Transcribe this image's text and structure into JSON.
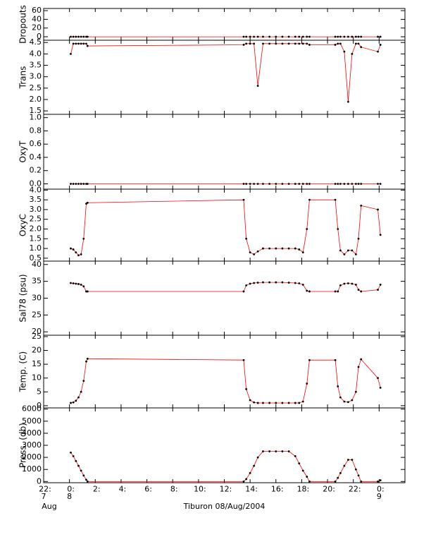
{
  "chart_data": [
    {
      "type": "line",
      "ylabel": "Dropouts",
      "xlim": [
        -2,
        26
      ],
      "ylim": [
        -8,
        65
      ],
      "yticks": [
        60,
        40,
        20,
        0
      ],
      "series": [
        {
          "color": "#ff0000",
          "marker_color": "#000000",
          "x": [
            0.1,
            0.3,
            0.5,
            0.7,
            0.9,
            1.1,
            1.3,
            1.4,
            13.5,
            13.7,
            14.0,
            14.3,
            14.6,
            15.0,
            15.5,
            16.0,
            16.5,
            17.0,
            17.5,
            17.8,
            18.1,
            18.4,
            18.6,
            20.6,
            20.8,
            21.0,
            21.3,
            21.6,
            21.9,
            22.2,
            22.4,
            22.6,
            23.9,
            24.1
          ],
          "values": [
            0,
            0,
            0,
            0,
            0,
            0,
            0,
            0,
            0,
            0,
            0,
            0,
            0,
            0,
            0,
            0,
            0,
            0,
            0,
            0,
            0,
            0,
            0,
            0,
            0,
            0,
            0,
            0,
            0,
            0,
            0,
            0,
            0,
            0
          ]
        }
      ]
    },
    {
      "type": "line",
      "ylabel": "Trans",
      "xlim": [
        -2,
        26
      ],
      "ylim": [
        1.35,
        4.6
      ],
      "yticks": [
        4.5,
        {
          "value": 4,
          "label": "4.0"
        },
        3.5,
        {
          "value": 3,
          "label": "3.0"
        },
        2.5,
        {
          "value": 2,
          "label": "2.0"
        },
        1.5
      ],
      "series": [
        {
          "color": "#ff0000",
          "marker_color": "#000000",
          "x": [
            0.1,
            0.3,
            0.5,
            0.7,
            0.9,
            1.1,
            1.3,
            1.4,
            13.5,
            13.7,
            14.0,
            14.3,
            14.6,
            15.0,
            15.5,
            16.0,
            16.5,
            17.0,
            17.5,
            17.8,
            18.1,
            18.4,
            18.6,
            20.6,
            20.8,
            21.0,
            21.3,
            21.6,
            21.9,
            22.2,
            22.4,
            22.6,
            23.9,
            24.1
          ],
          "values": [
            4.0,
            4.45,
            4.45,
            4.45,
            4.45,
            4.45,
            4.45,
            4.35,
            4.4,
            4.45,
            4.45,
            4.45,
            2.6,
            4.45,
            4.45,
            4.45,
            4.45,
            4.45,
            4.45,
            4.45,
            4.45,
            4.45,
            4.4,
            4.4,
            4.45,
            4.45,
            4.1,
            1.9,
            4.0,
            4.45,
            4.45,
            4.3,
            4.1,
            4.4
          ]
        }
      ]
    },
    {
      "type": "line",
      "ylabel": "OxyT",
      "xlim": [
        -2,
        26
      ],
      "ylim": [
        -0.08,
        1.05
      ],
      "yticks": [
        {
          "value": 1,
          "label": "1.0"
        },
        0.8,
        0.6,
        0.4,
        0.2,
        {
          "value": 0,
          "label": "0.0"
        }
      ],
      "series": [
        {
          "color": "#ff0000",
          "marker_color": "#000000",
          "x": [
            0.1,
            0.3,
            0.5,
            0.7,
            0.9,
            1.1,
            1.3,
            1.4,
            13.5,
            13.7,
            14.0,
            14.3,
            14.6,
            15.0,
            15.5,
            16.0,
            16.5,
            17.0,
            17.5,
            17.8,
            18.1,
            18.4,
            18.6,
            20.6,
            20.8,
            21.0,
            21.3,
            21.6,
            21.9,
            22.2,
            22.4,
            22.6,
            23.9,
            24.1
          ],
          "values": [
            0,
            0,
            0,
            0,
            0,
            0,
            0,
            0,
            0,
            0,
            0,
            0,
            0,
            0,
            0,
            0,
            0,
            0,
            0,
            0,
            0,
            0,
            0,
            0,
            0,
            0,
            0,
            0,
            0,
            0,
            0,
            0,
            0,
            0
          ]
        }
      ]
    },
    {
      "type": "line",
      "ylabel": "OxyC",
      "xlim": [
        -2,
        26
      ],
      "ylim": [
        0.35,
        4.05
      ],
      "yticks": [
        {
          "value": 4,
          "label": "4.0"
        },
        3.5,
        {
          "value": 3,
          "label": "3.0"
        },
        2.5,
        {
          "value": 2,
          "label": "2.0"
        },
        1.5,
        {
          "value": 1,
          "label": "1.0"
        },
        0.5
      ],
      "series": [
        {
          "color": "#ff0000",
          "marker_color": "#000000",
          "x": [
            0.1,
            0.3,
            0.5,
            0.7,
            0.9,
            1.1,
            1.3,
            1.4,
            13.5,
            13.7,
            14.0,
            14.3,
            14.6,
            15.0,
            15.5,
            16.0,
            16.5,
            17.0,
            17.5,
            17.8,
            18.1,
            18.4,
            18.6,
            20.6,
            20.8,
            21.0,
            21.3,
            21.6,
            21.9,
            22.2,
            22.4,
            22.6,
            23.9,
            24.1
          ],
          "values": [
            1.0,
            0.95,
            0.8,
            0.65,
            0.7,
            1.5,
            3.3,
            3.35,
            3.5,
            1.5,
            0.8,
            0.7,
            0.85,
            1.0,
            1.0,
            1.0,
            1.0,
            1.0,
            1.0,
            0.95,
            0.8,
            2.0,
            3.5,
            3.5,
            2.0,
            0.9,
            0.7,
            0.9,
            0.9,
            0.7,
            1.5,
            3.2,
            3.0,
            1.7
          ]
        }
      ]
    },
    {
      "type": "line",
      "ylabel": "Sal78 (psu)",
      "xlim": [
        -2,
        26
      ],
      "ylim": [
        19,
        41
      ],
      "yticks": [
        40,
        35,
        30,
        25,
        20
      ],
      "series": [
        {
          "color": "#ff0000",
          "marker_color": "#000000",
          "x": [
            0.1,
            0.3,
            0.5,
            0.7,
            0.9,
            1.1,
            1.3,
            1.4,
            13.5,
            13.7,
            14.0,
            14.3,
            14.6,
            15.0,
            15.5,
            16.0,
            16.5,
            17.0,
            17.5,
            17.8,
            18.1,
            18.4,
            18.6,
            20.6,
            20.8,
            21.0,
            21.3,
            21.6,
            21.9,
            22.2,
            22.4,
            22.6,
            23.9,
            24.1
          ],
          "values": [
            34.5,
            34.4,
            34.3,
            34.2,
            34,
            33.5,
            32,
            32,
            32,
            33.8,
            34.3,
            34.5,
            34.6,
            34.7,
            34.7,
            34.7,
            34.7,
            34.6,
            34.5,
            34.4,
            34,
            32.2,
            32,
            32,
            32,
            33.8,
            34.3,
            34.4,
            34.3,
            34,
            32.5,
            32,
            32.5,
            34
          ]
        }
      ]
    },
    {
      "type": "line",
      "ylabel": "Temp. (C)",
      "xlim": [
        -2,
        26
      ],
      "ylim": [
        -0.8,
        25.5
      ],
      "yticks": [
        25,
        20,
        15,
        10,
        5,
        0
      ],
      "series": [
        {
          "color": "#ff0000",
          "marker_color": "#000000",
          "x": [
            0.1,
            0.3,
            0.5,
            0.7,
            0.9,
            1.1,
            1.3,
            1.4,
            13.5,
            13.7,
            14.0,
            14.3,
            14.6,
            15.0,
            15.5,
            16.0,
            16.5,
            17.0,
            17.5,
            17.8,
            18.1,
            18.4,
            18.6,
            20.6,
            20.8,
            21.0,
            21.3,
            21.6,
            21.9,
            22.2,
            22.4,
            22.6,
            23.9,
            24.1
          ],
          "values": [
            1.0,
            1.2,
            1.8,
            3,
            5,
            9,
            16,
            17,
            16.5,
            6,
            2,
            1.2,
            1,
            1,
            1,
            1,
            1,
            1,
            1,
            1,
            1.5,
            8,
            16.5,
            16.5,
            7,
            3,
            1.5,
            1.3,
            2,
            5,
            14,
            16.8,
            10,
            6.5
          ]
        }
      ]
    },
    {
      "type": "line",
      "ylabel": "Press. (db)",
      "xlim": [
        -2,
        26
      ],
      "ylim": [
        -100,
        6100
      ],
      "yticks": [
        6000,
        5000,
        4000,
        3000,
        2000,
        1000,
        0
      ],
      "xticks": [
        {
          "value": -2,
          "label": "22:"
        },
        {
          "value": 0,
          "label": "0:"
        },
        {
          "value": 2,
          "label": "2:"
        },
        {
          "value": 4,
          "label": "4:"
        },
        {
          "value": 6,
          "label": "6:"
        },
        {
          "value": 8,
          "label": "8:"
        },
        {
          "value": 10,
          "label": "10:"
        },
        {
          "value": 12,
          "label": "12:"
        },
        {
          "value": 14,
          "label": "14:"
        },
        {
          "value": 16,
          "label": "16:"
        },
        {
          "value": 18,
          "label": "18:"
        },
        {
          "value": 20,
          "label": "20:"
        },
        {
          "value": 22,
          "label": "22:"
        },
        {
          "value": 24,
          "label": "0:"
        }
      ],
      "x_date_labels": [
        {
          "value": -2,
          "label": "7"
        },
        {
          "value": 0,
          "label": "8"
        },
        {
          "value": 24,
          "label": "9"
        }
      ],
      "x_month_label": "Aug",
      "xlabel": "Tiburon 08/Aug/2004",
      "series": [
        {
          "color": "#ff0000",
          "marker_color": "#000000",
          "x": [
            0.1,
            0.3,
            0.5,
            0.7,
            0.9,
            1.1,
            1.3,
            1.4,
            13.5,
            13.7,
            14.0,
            14.3,
            14.6,
            15.0,
            15.5,
            16.0,
            16.5,
            17.0,
            17.5,
            17.8,
            18.1,
            18.4,
            18.6,
            20.6,
            20.8,
            21.0,
            21.3,
            21.6,
            21.9,
            22.2,
            22.4,
            22.6,
            23.9,
            24.1
          ],
          "values": [
            2400,
            2100,
            1700,
            1300,
            900,
            500,
            150,
            0,
            0,
            200,
            700,
            1300,
            2000,
            2500,
            2500,
            2500,
            2500,
            2500,
            2100,
            1500,
            900,
            400,
            0,
            0,
            300,
            700,
            1300,
            1800,
            1800,
            1000,
            500,
            0,
            0,
            100
          ]
        }
      ]
    }
  ]
}
